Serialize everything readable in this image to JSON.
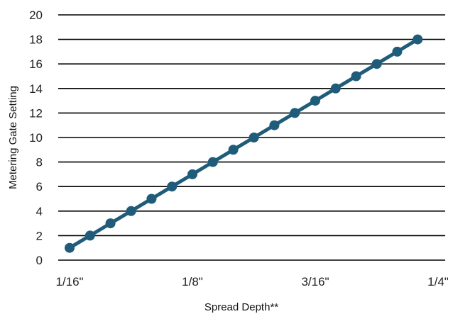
{
  "chart_data": {
    "type": "line",
    "title": "",
    "xlabel": "Spread Depth**",
    "ylabel": "Metering Gate  Setting",
    "x_tick_labels": [
      "1/16\"",
      "1/8\"",
      "3/16\"",
      "1/4\""
    ],
    "x_tick_values": [
      0.0625,
      0.125,
      0.1875,
      0.25
    ],
    "xlim": [
      0.0625,
      0.25
    ],
    "ylim": [
      0,
      20
    ],
    "y_ticks": [
      0,
      2,
      4,
      6,
      8,
      10,
      12,
      14,
      16,
      18,
      20
    ],
    "grid": "horizontal",
    "legend": "none",
    "series": [
      {
        "color": "#1f5c7a",
        "points": [
          {
            "x": 0.0625,
            "y": 1
          },
          {
            "x": 0.0729,
            "y": 2
          },
          {
            "x": 0.0833,
            "y": 3
          },
          {
            "x": 0.0938,
            "y": 4
          },
          {
            "x": 0.1042,
            "y": 5
          },
          {
            "x": 0.1146,
            "y": 6
          },
          {
            "x": 0.125,
            "y": 7
          },
          {
            "x": 0.1354,
            "y": 8
          },
          {
            "x": 0.1458,
            "y": 9
          },
          {
            "x": 0.1563,
            "y": 10
          },
          {
            "x": 0.1667,
            "y": 11
          },
          {
            "x": 0.1771,
            "y": 12
          },
          {
            "x": 0.1875,
            "y": 13
          },
          {
            "x": 0.1979,
            "y": 14
          },
          {
            "x": 0.2083,
            "y": 15
          },
          {
            "x": 0.2188,
            "y": 16
          },
          {
            "x": 0.2292,
            "y": 17
          },
          {
            "x": 0.2396,
            "y": 18
          }
        ]
      }
    ]
  }
}
